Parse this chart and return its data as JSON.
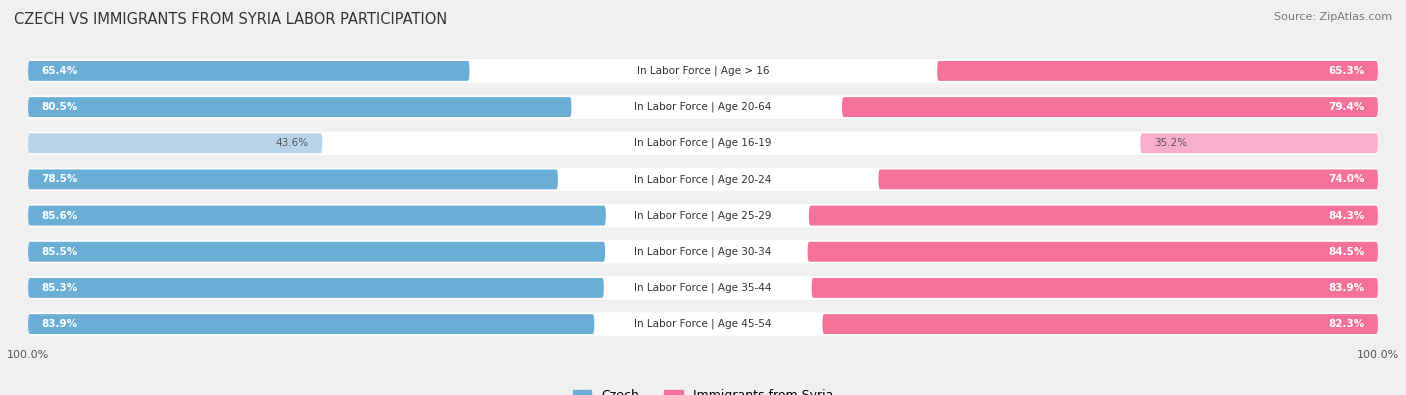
{
  "title": "Czech vs Immigrants from Syria Labor Participation",
  "source": "Source: ZipAtlas.com",
  "categories": [
    "In Labor Force | Age > 16",
    "In Labor Force | Age 20-64",
    "In Labor Force | Age 16-19",
    "In Labor Force | Age 20-24",
    "In Labor Force | Age 25-29",
    "In Labor Force | Age 30-34",
    "In Labor Force | Age 35-44",
    "In Labor Force | Age 45-54"
  ],
  "czech_values": [
    65.4,
    80.5,
    43.6,
    78.5,
    85.6,
    85.5,
    85.3,
    83.9
  ],
  "syria_values": [
    65.3,
    79.4,
    35.2,
    74.0,
    84.3,
    84.5,
    83.9,
    82.3
  ],
  "czech_color": "#6AAED6",
  "czech_color_light": "#B8D4EA",
  "syria_color": "#F4719A",
  "syria_color_light": "#F9AECB",
  "background_color": "#f0f0f0",
  "row_bg_color": "#e8e8e8",
  "bar_height": 0.55,
  "max_value": 100.0,
  "legend_czech": "Czech",
  "legend_syria": "Immigrants from Syria"
}
